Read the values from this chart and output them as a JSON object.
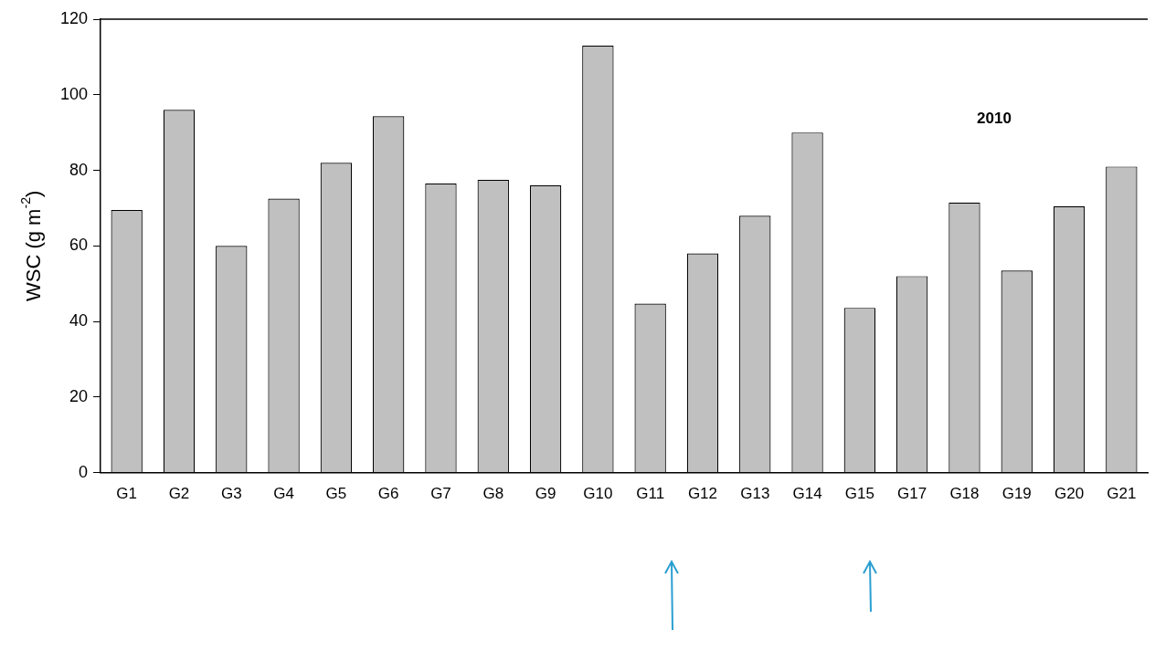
{
  "chart_data": {
    "type": "bar",
    "ylabel": "WSC (g m$^{-2}$)",
    "categories": [
      "G1",
      "G2",
      "G3",
      "G4",
      "G5",
      "G6",
      "G7",
      "G8",
      "G9",
      "G10",
      "G11",
      "G12",
      "G13",
      "G14",
      "G15",
      "G17",
      "G18",
      "G19",
      "G20",
      "G21"
    ],
    "values": [
      69.5,
      96,
      60,
      72.5,
      82,
      94.3,
      76.5,
      77.5,
      76,
      113,
      44.7,
      58,
      68,
      90,
      43.6,
      52,
      71.5,
      53.5,
      70.5,
      81
    ],
    "color": "#c0c0c0",
    "ylim": [
      0,
      120
    ],
    "yticks": [
      0,
      20,
      40,
      60,
      80,
      100,
      120
    ],
    "grid": false,
    "legend": false,
    "annotations": [
      "2010"
    ]
  }
}
